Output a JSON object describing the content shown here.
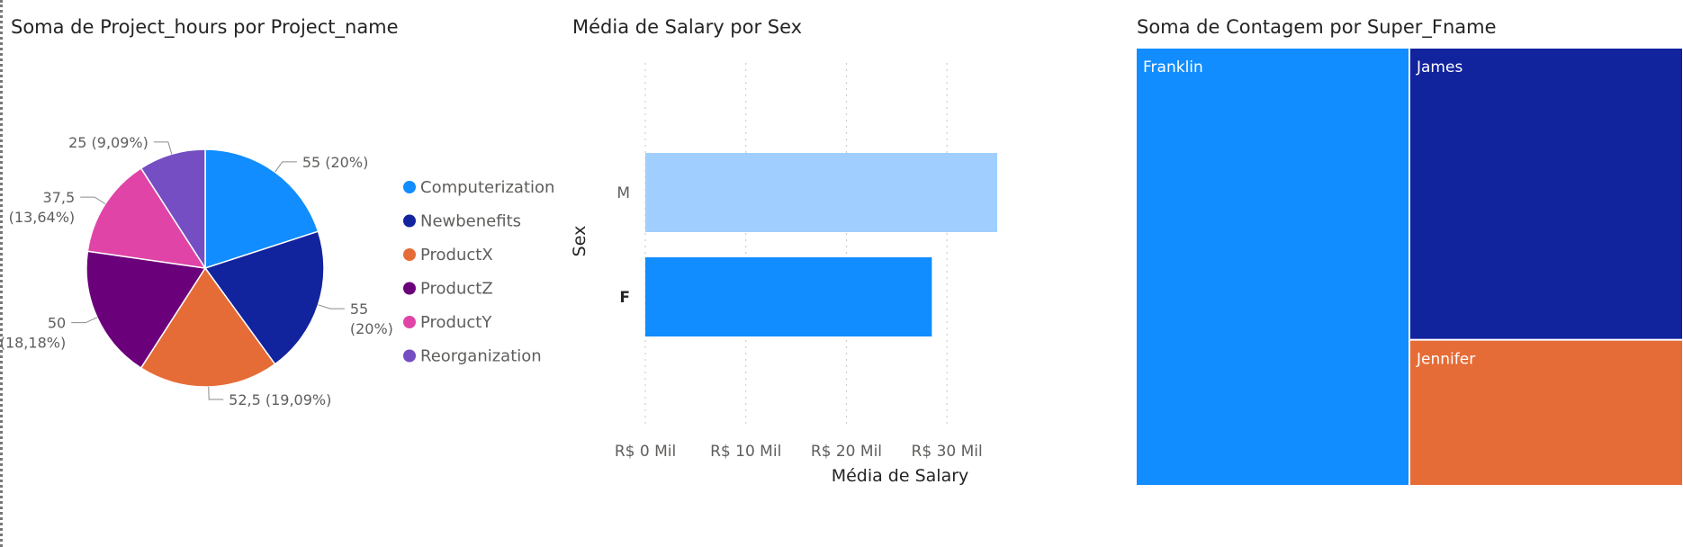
{
  "colors": {
    "computerization": "#118DFF",
    "newbenefits": "#12239E",
    "productx": "#E66C37",
    "productz": "#6B007B",
    "producty": "#E044A7",
    "reorganization": "#744EC2",
    "bar_m": "#A0CFFF",
    "bar_f": "#118DFF"
  },
  "chart_data": [
    {
      "type": "pie",
      "title": "Soma de Project_hours por Project_name",
      "slices": [
        {
          "name": "Computerization",
          "value": 55,
          "label": "55 (20%)"
        },
        {
          "name": "Newbenefits",
          "value": 55,
          "label_line1": "55",
          "label_line2": "(20%)"
        },
        {
          "name": "ProductX",
          "value": 52.5,
          "label": "52,5 (19,09%)"
        },
        {
          "name": "ProductZ",
          "value": 50,
          "label_line1": "50",
          "label_line2": "(18,18%)"
        },
        {
          "name": "ProductY",
          "value": 37.5,
          "label_line1": "37,5",
          "label_line2": "(13,64%)"
        },
        {
          "name": "Reorganization",
          "value": 25,
          "label": "25 (9,09%)"
        }
      ],
      "legend": [
        "Computerization",
        "Newbenefits",
        "ProductX",
        "ProductZ",
        "ProductY",
        "Reorganization"
      ]
    },
    {
      "type": "bar",
      "orientation": "horizontal",
      "title": "Média de Salary por Sex",
      "categories": [
        "M",
        "F"
      ],
      "values": [
        35000,
        28500
      ],
      "xlabel": "Média de Salary",
      "ylabel": "Sex",
      "xlim": [
        0,
        35000
      ],
      "ticks": [
        "R$ 0 Mil",
        "R$ 10 Mil",
        "R$ 20 Mil",
        "R$ 30 Mil"
      ],
      "grid": true
    },
    {
      "type": "treemap",
      "title": "Soma de Contagem por Super_Fname",
      "items": [
        {
          "name": "Franklin",
          "value": 3
        },
        {
          "name": "James",
          "value": 2
        },
        {
          "name": "Jennifer",
          "value": 1
        }
      ]
    }
  ]
}
